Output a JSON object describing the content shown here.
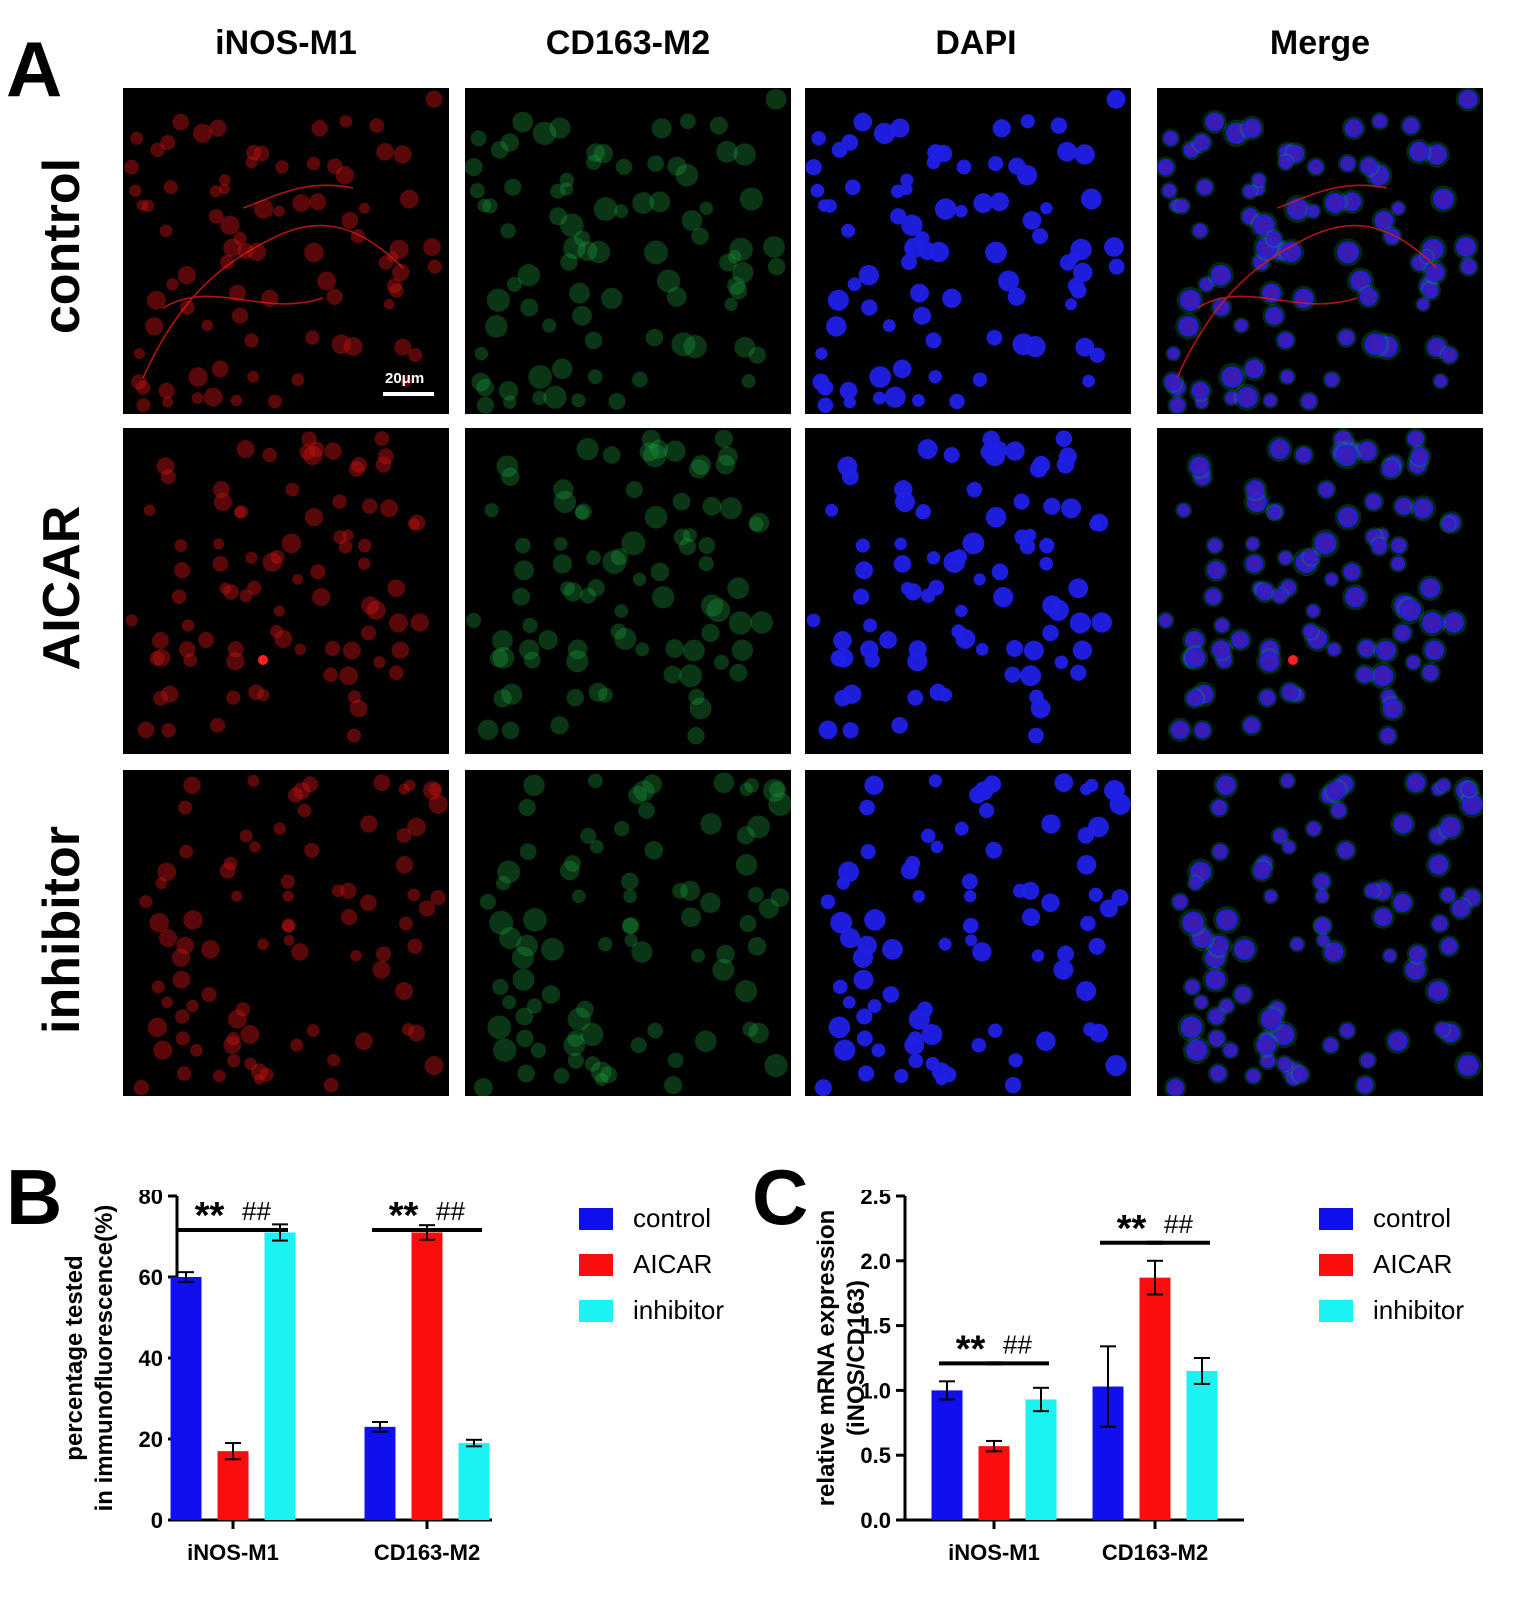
{
  "panels": {
    "a": "A",
    "b": "B",
    "c": "C"
  },
  "columns": [
    "iNOS-M1",
    "CD163-M2",
    "DAPI",
    "Merge"
  ],
  "rows": [
    "control",
    "AICAR",
    "inhibitor"
  ],
  "scale_bar": "20μm",
  "colors": {
    "control": "#1010ee",
    "AICAR": "#fb0d0d",
    "inhibitor": "#1bf2f2",
    "iNOS_channel": "#c41212",
    "CD163_channel": "#1c9a3c",
    "DAPI_channel": "#1f1fe6"
  },
  "chart_data": [
    {
      "panel": "B",
      "type": "bar",
      "categories": [
        "iNOS-M1",
        "CD163-M2"
      ],
      "ylabel": "percentage tested\nin immunofluorescence(%)",
      "ylim": [
        0,
        80
      ],
      "yticks": [
        "0",
        "20",
        "40",
        "60",
        "80"
      ],
      "series": [
        {
          "name": "control",
          "values": [
            60,
            23
          ],
          "errors": [
            1.2,
            1.2
          ]
        },
        {
          "name": "AICAR",
          "values": [
            17,
            71
          ],
          "errors": [
            2.0,
            1.8
          ]
        },
        {
          "name": "inhibitor",
          "values": [
            71,
            19
          ],
          "errors": [
            2.0,
            0.8
          ]
        }
      ],
      "annotations": [
        {
          "category": "iNOS-M1",
          "pair": [
            "control",
            "AICAR"
          ],
          "text": "**"
        },
        {
          "category": "iNOS-M1",
          "pair": [
            "AICAR",
            "inhibitor"
          ],
          "text": "##"
        },
        {
          "category": "CD163-M2",
          "pair": [
            "control",
            "AICAR"
          ],
          "text": "**"
        },
        {
          "category": "CD163-M2",
          "pair": [
            "AICAR",
            "inhibitor"
          ],
          "text": "##"
        }
      ],
      "legend": "right"
    },
    {
      "panel": "C",
      "type": "bar",
      "categories": [
        "iNOS-M1",
        "CD163-M2"
      ],
      "ylabel": "relative mRNA expression\n(iNOS/CD163)",
      "ylim": [
        0,
        2.5
      ],
      "yticks": [
        "0.0",
        "0.5",
        "1.0",
        "1.5",
        "2.0",
        "2.5"
      ],
      "series": [
        {
          "name": "control",
          "values": [
            1.0,
            1.03
          ],
          "errors": [
            0.07,
            0.31
          ]
        },
        {
          "name": "AICAR",
          "values": [
            0.57,
            1.87
          ],
          "errors": [
            0.04,
            0.13
          ]
        },
        {
          "name": "inhibitor",
          "values": [
            0.93,
            1.15
          ],
          "errors": [
            0.09,
            0.1
          ]
        }
      ],
      "annotations": [
        {
          "category": "iNOS-M1",
          "pair": [
            "control",
            "AICAR"
          ],
          "text": "**"
        },
        {
          "category": "iNOS-M1",
          "pair": [
            "AICAR",
            "inhibitor"
          ],
          "text": "##"
        },
        {
          "category": "CD163-M2",
          "pair": [
            "control",
            "AICAR"
          ],
          "text": "**"
        },
        {
          "category": "CD163-M2",
          "pair": [
            "AICAR",
            "inhibitor"
          ],
          "text": "##"
        }
      ],
      "legend": "right"
    }
  ]
}
